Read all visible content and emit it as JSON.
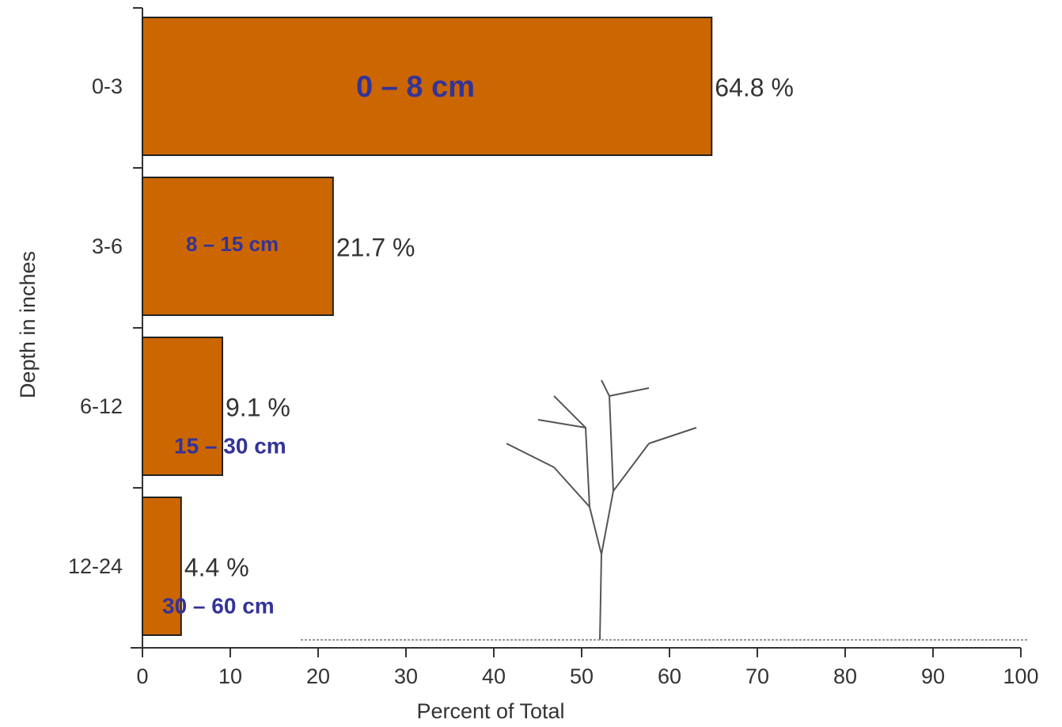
{
  "chart_data": {
    "type": "bar",
    "orientation": "horizontal",
    "ylabel": "Depth in inches",
    "xlabel": "Percent of Total",
    "categories": [
      "0-3",
      "3-6",
      "6-12",
      "12-24"
    ],
    "values": [
      64.8,
      21.7,
      9.1,
      4.4
    ],
    "value_labels": [
      "64.8 %",
      "21.7 %",
      "9.1 %",
      "4.4 %"
    ],
    "annotations": [
      "0 – 8 cm",
      "8 – 15 cm",
      "15 – 30 cm",
      "30 – 60 cm"
    ],
    "color": "#cc6600",
    "xlim": [
      0,
      100
    ],
    "xticks": [
      0,
      10,
      20,
      30,
      40,
      50,
      60,
      70,
      80,
      90,
      100
    ]
  }
}
